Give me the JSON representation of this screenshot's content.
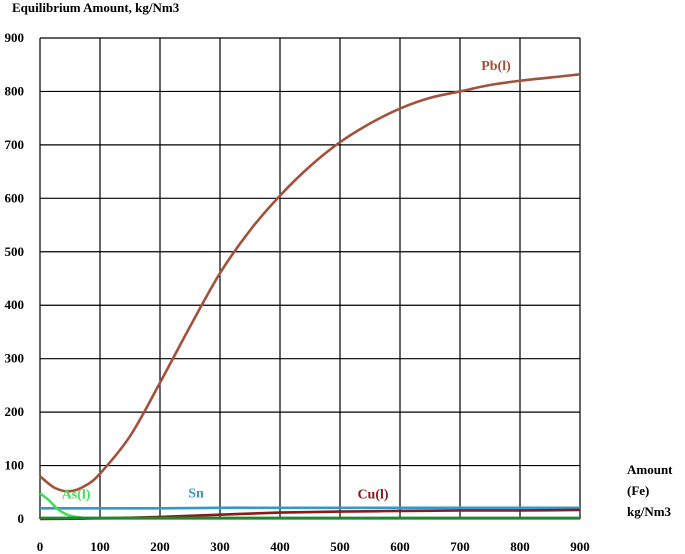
{
  "chart_data": {
    "type": "line",
    "ylabel": "Equilibrium Amount, kg/Nm3",
    "xlabel_lines": [
      "Amount",
      "(Fe)",
      "kg/Nm3"
    ],
    "xlim": [
      0,
      900
    ],
    "ylim": [
      0,
      900
    ],
    "x_ticks": [
      0,
      100,
      200,
      300,
      400,
      500,
      600,
      700,
      800,
      900
    ],
    "y_ticks": [
      0,
      100,
      200,
      300,
      400,
      500,
      600,
      700,
      800,
      900
    ],
    "grid": true,
    "colors": {
      "grid": "#000000",
      "background": "#ffffff"
    },
    "series": [
      {
        "name": "Pb(l)",
        "color": "#a0523c",
        "label_at": [
          760,
          840
        ],
        "x": [
          0,
          25,
          50,
          75,
          100,
          150,
          200,
          250,
          300,
          350,
          400,
          450,
          500,
          550,
          600,
          650,
          700,
          750,
          800,
          850,
          900
        ],
        "y": [
          80,
          58,
          52,
          62,
          85,
          155,
          255,
          360,
          460,
          540,
          605,
          660,
          705,
          740,
          768,
          788,
          800,
          812,
          820,
          826,
          832
        ]
      },
      {
        "name": "Sn",
        "color": "#3399cc",
        "label_at": [
          260,
          40
        ],
        "x": [
          0,
          100,
          200,
          300,
          400,
          500,
          600,
          700,
          800,
          900
        ],
        "y": [
          20,
          20,
          20,
          21,
          21,
          21,
          21,
          21,
          21,
          21
        ]
      },
      {
        "name": "Cu(l)",
        "color": "#8b1a1a",
        "label_at": [
          555,
          38
        ],
        "x": [
          0,
          100,
          200,
          300,
          400,
          500,
          600,
          700,
          800,
          900
        ],
        "y": [
          0,
          1,
          4,
          8,
          12,
          14,
          15,
          16,
          16,
          17
        ]
      },
      {
        "name": "As(l)",
        "color": "#44dd55",
        "label_at": [
          60,
          38
        ],
        "x": [
          0,
          15,
          30,
          50,
          75,
          100,
          150,
          200,
          300,
          400,
          500,
          600,
          700,
          800,
          900
        ],
        "y": [
          48,
          35,
          18,
          6,
          2,
          1,
          1,
          1,
          1,
          1,
          1,
          1,
          1,
          1,
          1
        ]
      },
      {
        "name": "",
        "color": "#1a8a2a",
        "x": [
          0,
          900
        ],
        "y": [
          2,
          2
        ]
      }
    ]
  }
}
